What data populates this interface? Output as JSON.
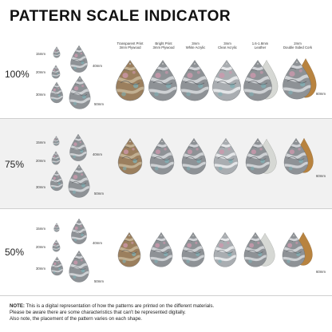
{
  "title": "PATTERN SCALE INDICATOR",
  "rows": [
    {
      "percent": "100%",
      "sizes": {
        "s15": "15mm",
        "s20": "20mm",
        "s30": "30mm",
        "s40": "40mm",
        "s50": "50mm",
        "s60": "60mm"
      }
    },
    {
      "percent": "75%",
      "sizes": {
        "s15": "15mm",
        "s20": "20mm",
        "s30": "30mm",
        "s40": "40mm",
        "s50": "50mm",
        "s60": "60mm"
      }
    },
    {
      "percent": "50%",
      "sizes": {
        "s15": "15mm",
        "s20": "20mm",
        "s30": "30mm",
        "s40": "40mm",
        "s50": "50mm",
        "s60": "60mm"
      }
    }
  ],
  "columns": [
    {
      "line1": "Transparent Print",
      "line2": "3mm Plywood"
    },
    {
      "line1": "Bright Print",
      "line2": "3mm Plywood"
    },
    {
      "line1": "3mm",
      "line2": "White Acrylic"
    },
    {
      "line1": "3mm",
      "line2": "Clear Acrylic"
    },
    {
      "line1": "1.6-1.8mm",
      "line2": "Leather"
    },
    {
      "line1": "2mm",
      "line2": "Double Sided Cork"
    }
  ],
  "note": {
    "label": "NOTE:",
    "line1": " This is a digital representation of how the patterns are printed on the different materials.",
    "line2": "Please be aware there are some characteristics that can't be represented digitally.",
    "line3": "Also note, the placement of the pattern varies on each shape."
  },
  "colors": {
    "plywood": "#9b7f5e",
    "cork": "#b8833f",
    "marble_base": "#8e9296",
    "marble_light": "#d9dcdf",
    "pink": "#cf98ad",
    "teal": "#7fb0b6",
    "leather": "#d6d8d4",
    "band": "#f1f1f1"
  }
}
